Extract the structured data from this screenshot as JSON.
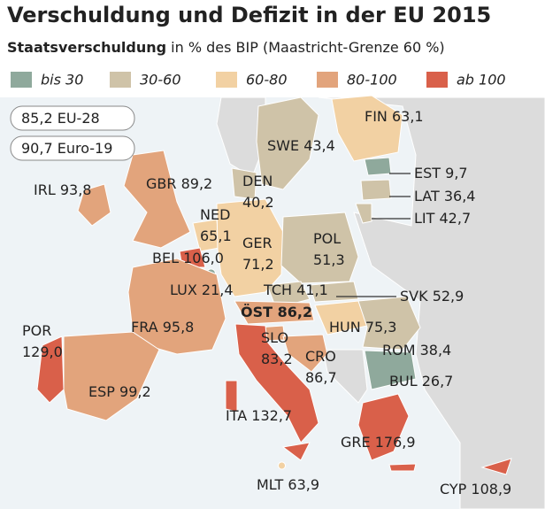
{
  "title": "Verschuldung und Defizit in der EU 2015",
  "subtitle": {
    "bold": "Staatsverschuldung",
    "rest": "in % des BIP (Maastricht-Grenze 60 %)"
  },
  "legend": [
    {
      "label": "bis 30",
      "color": "#8fa99c"
    },
    {
      "label": "30-60",
      "color": "#cfc3a8"
    },
    {
      "label": "60-80",
      "color": "#f2d1a3"
    },
    {
      "label": "80-100",
      "color": "#e2a47c"
    },
    {
      "label": "ab 100",
      "color": "#d9604a"
    }
  ],
  "summary": [
    {
      "value": "85,2",
      "label": "EU-28"
    },
    {
      "value": "90,7",
      "label": "Euro-19"
    }
  ],
  "countries": [
    {
      "name": "FIN",
      "value": 63.1,
      "value_label": "63,1",
      "color": "#f2d1a3"
    },
    {
      "name": "SWE",
      "value": 43.4,
      "value_label": "43,4",
      "color": "#cfc3a8"
    },
    {
      "name": "EST",
      "value": 9.7,
      "value_label": "9,7",
      "color": "#8fa99c"
    },
    {
      "name": "LAT",
      "value": 36.4,
      "value_label": "36,4",
      "color": "#cfc3a8"
    },
    {
      "name": "LIT",
      "value": 42.7,
      "value_label": "42,7",
      "color": "#cfc3a8"
    },
    {
      "name": "IRL",
      "value": 93.8,
      "value_label": "93,8",
      "color": "#e2a47c"
    },
    {
      "name": "GBR",
      "value": 89.2,
      "value_label": "89,2",
      "color": "#e2a47c"
    },
    {
      "name": "DEN",
      "value": 40.2,
      "value_label": "40,2",
      "color": "#cfc3a8"
    },
    {
      "name": "NED",
      "value": 65.1,
      "value_label": "65,1",
      "color": "#f2d1a3"
    },
    {
      "name": "GER",
      "value": 71.2,
      "value_label": "71,2",
      "color": "#f2d1a3"
    },
    {
      "name": "POL",
      "value": 51.3,
      "value_label": "51,3",
      "color": "#cfc3a8"
    },
    {
      "name": "BEL",
      "value": 106.0,
      "value_label": "106,0",
      "color": "#d9604a"
    },
    {
      "name": "LUX",
      "value": 21.4,
      "value_label": "21,4",
      "color": "#8fa99c"
    },
    {
      "name": "TCH",
      "value": 41.1,
      "value_label": "41,1",
      "color": "#cfc3a8"
    },
    {
      "name": "SVK",
      "value": 52.9,
      "value_label": "52,9",
      "color": "#cfc3a8"
    },
    {
      "name": "ÖST",
      "value": 86.2,
      "value_label": "86,2",
      "color": "#e2a47c"
    },
    {
      "name": "POR",
      "value": 129.0,
      "value_label": "129,0",
      "color": "#d9604a"
    },
    {
      "name": "FRA",
      "value": 95.8,
      "value_label": "95,8",
      "color": "#e2a47c"
    },
    {
      "name": "HUN",
      "value": 75.3,
      "value_label": "75,3",
      "color": "#f2d1a3"
    },
    {
      "name": "ROM",
      "value": 38.4,
      "value_label": "38,4",
      "color": "#cfc3a8"
    },
    {
      "name": "SLO",
      "value": 83.2,
      "value_label": "83,2",
      "color": "#e2a47c"
    },
    {
      "name": "CRO",
      "value": 86.7,
      "value_label": "86,7",
      "color": "#e2a47c"
    },
    {
      "name": "BUL",
      "value": 26.7,
      "value_label": "26,7",
      "color": "#8fa99c"
    },
    {
      "name": "ESP",
      "value": 99.2,
      "value_label": "99,2",
      "color": "#e2a47c"
    },
    {
      "name": "ITA",
      "value": 132.7,
      "value_label": "132,7",
      "color": "#d9604a"
    },
    {
      "name": "GRE",
      "value": 176.9,
      "value_label": "176,9",
      "color": "#d9604a"
    },
    {
      "name": "MLT",
      "value": 63.9,
      "value_label": "63,9",
      "color": "#f2d1a3"
    },
    {
      "name": "CYP",
      "value": 108.9,
      "value_label": "108,9",
      "color": "#d9604a"
    }
  ]
}
